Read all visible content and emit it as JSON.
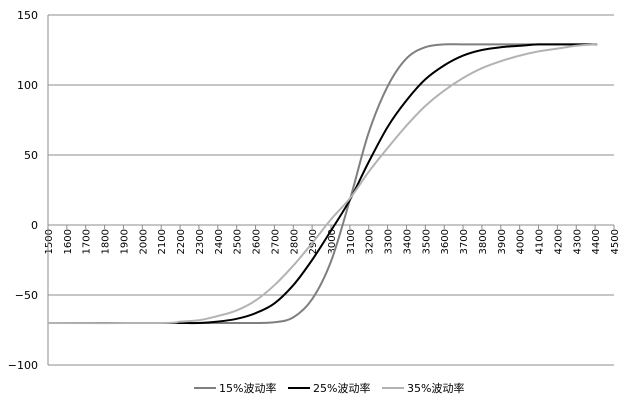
{
  "chart_data": {
    "type": "line",
    "title": "",
    "xlabel": "",
    "ylabel": "",
    "xlim": [
      1500,
      4500
    ],
    "ylim": [
      -100,
      150
    ],
    "xticks": [
      1500,
      1600,
      1700,
      1800,
      1900,
      2000,
      2100,
      2200,
      2300,
      2400,
      2500,
      2600,
      2700,
      2800,
      2900,
      3000,
      3100,
      3200,
      3300,
      3400,
      3500,
      3600,
      3700,
      3800,
      3900,
      4000,
      4100,
      4200,
      4300,
      4400,
      4500
    ],
    "yticks": [
      -100,
      -50,
      0,
      50,
      100,
      150
    ],
    "grid": "horizontal",
    "legend": "bottom",
    "x": [
      2100,
      2200,
      2300,
      2400,
      2500,
      2600,
      2700,
      2800,
      2900,
      3000,
      3100,
      3200,
      3300,
      3400,
      3500,
      3600,
      3700,
      3800,
      3900,
      4000,
      4100,
      4200,
      4300,
      4400
    ],
    "series": [
      {
        "name": "15%波动率",
        "color": "#7f7f7f",
        "values": [
          -70,
          -70,
          -70,
          -70,
          -70,
          -70,
          -69.5,
          -66,
          -53,
          -26,
          18,
          66,
          99,
          119,
          127,
          129,
          129,
          129,
          129,
          129,
          129,
          129,
          129,
          129
        ]
      },
      {
        "name": "25%波动率",
        "color": "#000000",
        "values": [
          -70,
          -70,
          -70,
          -69,
          -67,
          -63,
          -56,
          -43,
          -25,
          -4,
          18,
          45,
          70,
          89,
          104,
          114,
          121,
          125,
          127,
          128,
          129,
          129,
          129,
          129
        ]
      },
      {
        "name": "35%波动率",
        "color": "#b3b3b3",
        "values": [
          -70,
          -69,
          -68,
          -65,
          -61,
          -54,
          -43,
          -29,
          -13,
          4,
          19,
          38,
          55,
          71,
          85,
          96,
          105,
          112,
          117,
          121,
          124,
          126,
          128,
          129
        ]
      }
    ]
  }
}
